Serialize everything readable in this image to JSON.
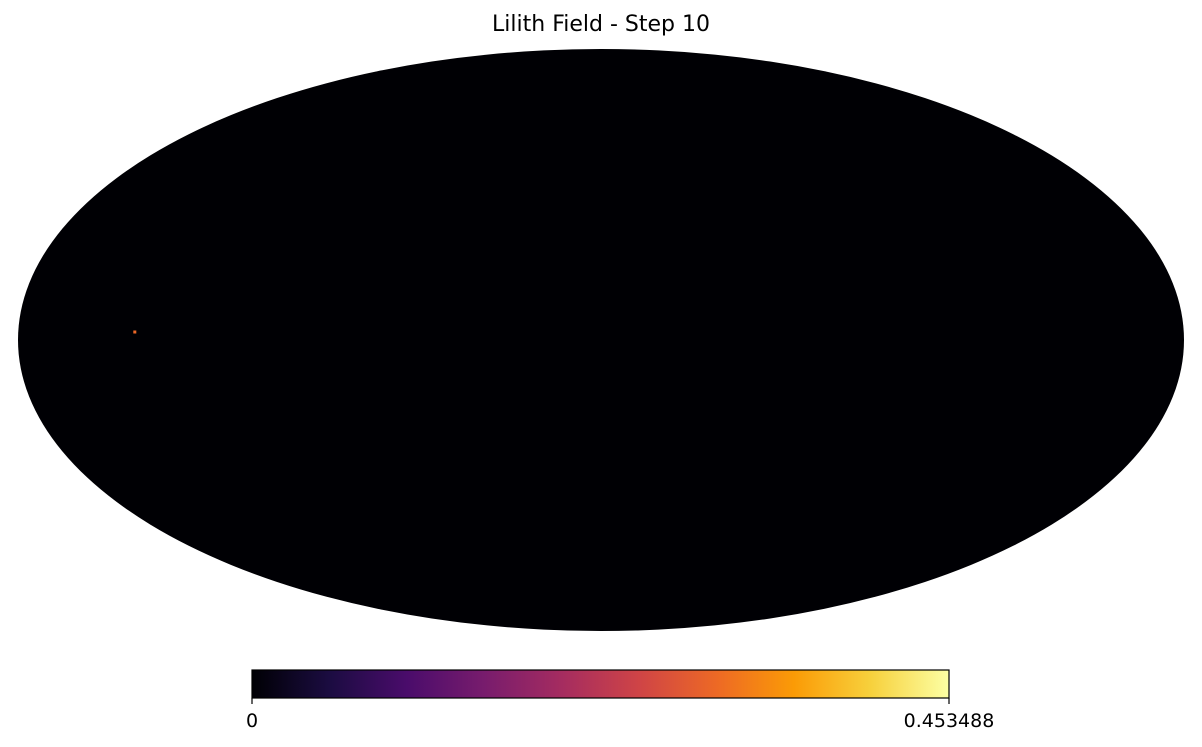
{
  "chart_data": {
    "type": "heatmap",
    "projection": "mollweide",
    "title": "Lilith Field - Step 10",
    "colormap": "inferno",
    "colormap_stops": [
      "#000004",
      "#1b0c41",
      "#4a0c6b",
      "#781c6d",
      "#a52c60",
      "#cf4446",
      "#ed6925",
      "#fb9b06",
      "#f7d13d",
      "#fcffa4"
    ],
    "background_value": 0,
    "hot_spots": [
      {
        "lon_deg": 144,
        "lat_deg": 2,
        "value": 0.3
      }
    ],
    "colorbar": {
      "orientation": "horizontal",
      "min": 0,
      "max": 0.453488,
      "min_label": "0",
      "max_label": "0.453488"
    }
  }
}
